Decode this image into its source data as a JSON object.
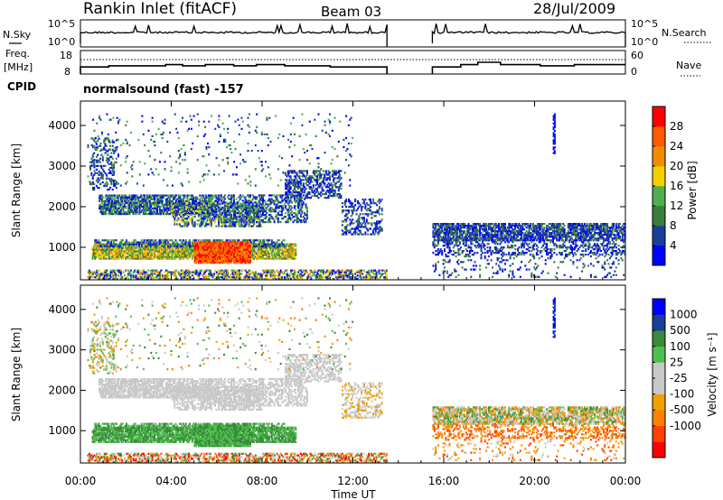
{
  "header": {
    "title": "Rankin Inlet (fitACF)",
    "beam": "Beam 03",
    "date": "28/Jul/2009"
  },
  "labels": {
    "nsky": "N.Sky",
    "nsearch": "N.Search",
    "freq_line1": "Freq.",
    "freq_line2": "[MHz]",
    "nave": "Nave",
    "cpid": "CPID",
    "cpid_value": "normalsound (fast) -157",
    "yaxis": "Slant Range [km]",
    "xaxis": "Time UT",
    "power_label": "Power [dB]",
    "velocity_label": "Velocity [m s⁻¹]"
  },
  "colors": {
    "power": [
      "#0000ff",
      "#1a3f99",
      "#3a7d3a",
      "#4fae4f",
      "#f5d000",
      "#f08c00",
      "#ff5a00",
      "#ff0000"
    ],
    "velocity": [
      "#0000ff",
      "#1a3f99",
      "#3a8a3a",
      "#4fbf4f",
      "#c8c8c8",
      "#c8c8c8",
      "#f0a000",
      "#ff7f00",
      "#ff4000",
      "#ff0000"
    ]
  },
  "chart_data": [
    {
      "type": "line",
      "name": "noise",
      "y_left_ticks": [
        "10^5",
        "10^0"
      ],
      "y_right_ticks": [
        "10^5",
        "10^0"
      ],
      "data_gap": [
        "13:30",
        "15:30"
      ]
    },
    {
      "type": "line",
      "name": "frequency",
      "y_left_ticks": [
        "18",
        "8"
      ],
      "y_right_ticks": [
        "60",
        "0"
      ],
      "freq_segments_mhz": [
        {
          "start": "00:00",
          "end": "01:15",
          "value": 11
        },
        {
          "start": "01:15",
          "end": "03:45",
          "value": 11.5
        },
        {
          "start": "03:45",
          "end": "04:30",
          "value": 12
        },
        {
          "start": "04:30",
          "end": "05:30",
          "value": 11.5
        },
        {
          "start": "05:30",
          "end": "06:45",
          "value": 12
        },
        {
          "start": "06:45",
          "end": "07:45",
          "value": 11.5
        },
        {
          "start": "07:45",
          "end": "09:00",
          "value": 12
        },
        {
          "start": "09:00",
          "end": "11:00",
          "value": 11.5
        },
        {
          "start": "11:00",
          "end": "13:30",
          "value": 11
        },
        {
          "start": "15:30",
          "end": "16:45",
          "value": 11
        },
        {
          "start": "16:45",
          "end": "17:30",
          "value": 12
        },
        {
          "start": "17:30",
          "end": "18:30",
          "value": 13
        },
        {
          "start": "18:30",
          "end": "20:15",
          "value": 12
        },
        {
          "start": "20:15",
          "end": "21:45",
          "value": 11.5
        },
        {
          "start": "21:45",
          "end": "24:00",
          "value": 12
        }
      ]
    },
    {
      "type": "heatmap",
      "name": "power",
      "ylabel": "Slant Range [km]",
      "y_ticks": [
        "1000",
        "2000",
        "3000",
        "4000"
      ],
      "x_ticks": [
        "00:00",
        "04:00",
        "08:00",
        "12:00",
        "16:00",
        "20:00",
        "00:00"
      ],
      "xlabel": "Time UT",
      "colorbar_ticks": [
        "4",
        "8",
        "12",
        "16",
        "20",
        "24",
        "28"
      ],
      "colorbar_label": "Power [dB]",
      "data_gap": [
        "13:30",
        "15:30"
      ]
    },
    {
      "type": "heatmap",
      "name": "velocity",
      "ylabel": "Slant Range [km]",
      "y_ticks": [
        "1000",
        "2000",
        "3000",
        "4000"
      ],
      "x_ticks": [
        "00:00",
        "04:00",
        "08:00",
        "12:00",
        "16:00",
        "20:00",
        "00:00"
      ],
      "xlabel": "Time UT",
      "colorbar_ticks": [
        "1000",
        "500",
        "100",
        "25",
        "-25",
        "-100",
        "-500",
        "-1000"
      ],
      "colorbar_label": "Velocity [m s⁻¹]",
      "data_gap": [
        "13:30",
        "15:30"
      ]
    }
  ]
}
